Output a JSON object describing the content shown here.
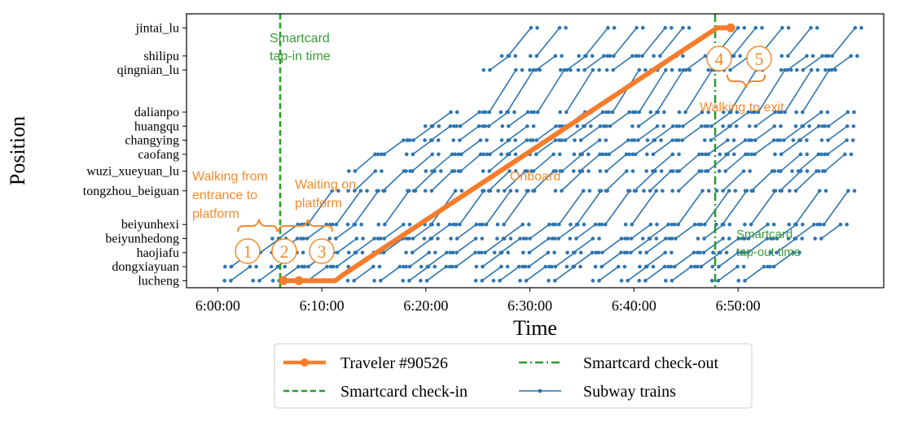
{
  "chart_data": {
    "type": "line",
    "xlabel": "Time",
    "ylabel": "Position",
    "xlim": [
      -3.0,
      64.0
    ],
    "ylim": [
      -0.5,
      19.0
    ],
    "xticks": [
      {
        "v": 0,
        "label": "6:00:00"
      },
      {
        "v": 10,
        "label": "6:10:00"
      },
      {
        "v": 20,
        "label": "6:20:00"
      },
      {
        "v": 30,
        "label": "6:30:00"
      },
      {
        "v": 40,
        "label": "6:40:00"
      },
      {
        "v": 50,
        "label": "6:50:00"
      }
    ],
    "stations": [
      {
        "name": "lucheng",
        "pos": 0
      },
      {
        "name": "dongxiayuan",
        "pos": 1
      },
      {
        "name": "haojiafu",
        "pos": 2
      },
      {
        "name": "beiyunhedong",
        "pos": 3
      },
      {
        "name": "beiyunhexi",
        "pos": 4
      },
      {
        "name": "tongzhou_beiguan",
        "pos": 6.4
      },
      {
        "name": "wuzi_xueyuan_lu",
        "pos": 7.8
      },
      {
        "name": "caofang",
        "pos": 9
      },
      {
        "name": "changying",
        "pos": 10
      },
      {
        "name": "huangqu",
        "pos": 11
      },
      {
        "name": "dalianpo",
        "pos": 12
      },
      {
        "name": "qingnian_lu",
        "pos": 15
      },
      {
        "name": "shilipu",
        "pos": 16
      },
      {
        "name": "jintai_lu",
        "pos": 18
      }
    ],
    "series": [
      {
        "name": "Traveler #90526",
        "color": "#f57c2b",
        "points": [
          [
            6.3,
            0
          ],
          [
            7.8,
            0
          ],
          [
            11.3,
            0
          ],
          [
            12.0,
            0.4
          ],
          [
            48.0,
            18
          ],
          [
            49.3,
            18
          ]
        ]
      },
      {
        "name": "Smartcard check-in",
        "color": "#2a9a2a",
        "style": "dashed",
        "x": 6.0
      },
      {
        "name": "Smartcard check-out",
        "color": "#2a9a2a",
        "style": "dashdot",
        "x": 47.8
      },
      {
        "name": "Subway trains",
        "color": "#2d75b0",
        "style": "line-with-dots"
      }
    ],
    "legend": {
      "placement": "below",
      "columns": 2
    },
    "annotations": [
      {
        "text": "Smartcard",
        "color": "#3a9a3a"
      },
      {
        "text": "tap-in time",
        "color": "#3a9a3a"
      },
      {
        "text": "Smartcard",
        "color": "#3a9a3a"
      },
      {
        "text": "tap-out time",
        "color": "#3a9a3a"
      },
      {
        "text": "Walking from",
        "color": "#f58a2b"
      },
      {
        "text": "entrance to",
        "color": "#f58a2b"
      },
      {
        "text": "platform",
        "color": "#f58a2b"
      },
      {
        "text": "Waiting on",
        "color": "#f58a2b"
      },
      {
        "text": "platform",
        "color": "#f58a2b"
      },
      {
        "text": "Onboard",
        "color": "#f58a2b"
      },
      {
        "text": "Walking to exit",
        "color": "#f58a2b"
      }
    ],
    "markers": [
      "1",
      "2",
      "3",
      "4",
      "5"
    ]
  }
}
